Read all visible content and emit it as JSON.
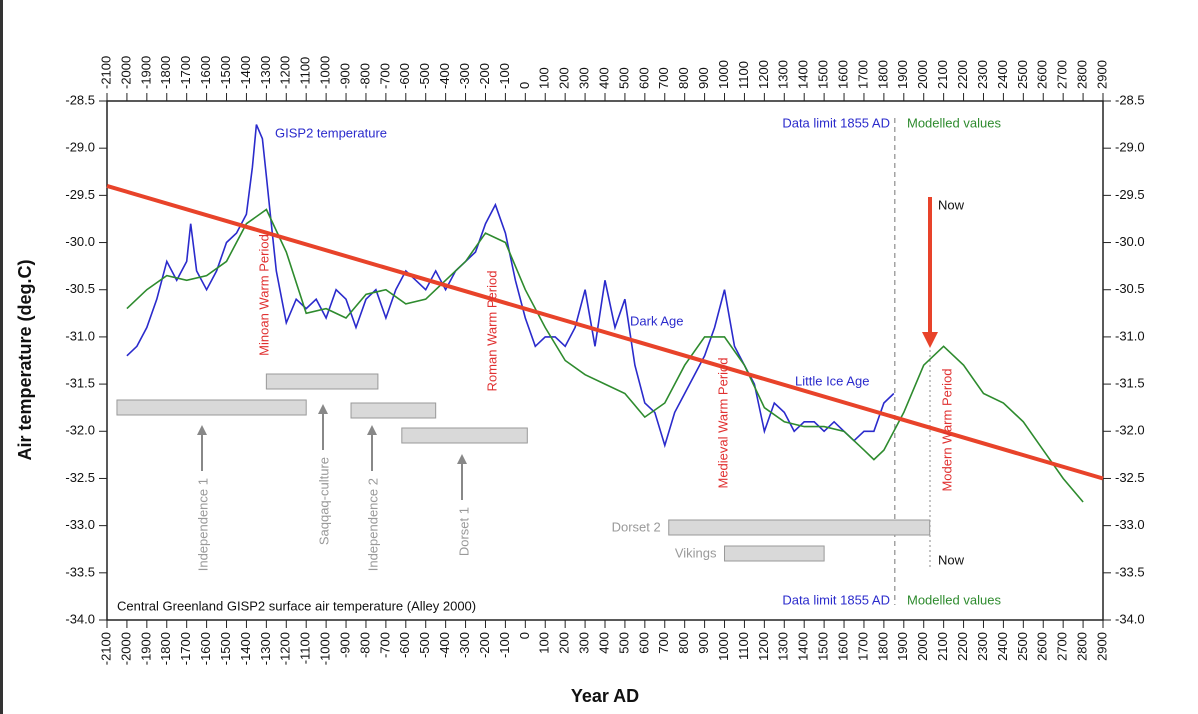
{
  "chart_data": {
    "type": "line",
    "title": "Central Greenland GISP2 surface air temperature (Alley 2000)",
    "xlabel": "Year AD",
    "ylabel": "Air temperature (deg.C)",
    "xlim": [
      -2100,
      2900
    ],
    "xticks": [
      -2100,
      -2000,
      -1900,
      -1800,
      -1700,
      -1600,
      -1500,
      -1400,
      -1300,
      -1200,
      -1100,
      -1000,
      -900,
      -800,
      -700,
      -600,
      -500,
      -400,
      -300,
      -200,
      -100,
      0,
      100,
      200,
      300,
      400,
      500,
      600,
      700,
      800,
      900,
      1000,
      1100,
      1200,
      1300,
      1400,
      1500,
      1600,
      1700,
      1800,
      1900,
      2000,
      2100,
      2200,
      2300,
      2400,
      2500,
      2600,
      2700,
      2800,
      2900
    ],
    "ylim": [
      -34,
      -28.5
    ],
    "yticks": [
      -28.5,
      {
        "value": -29,
        "label": "-29.0"
      },
      -29.5,
      {
        "value": -30,
        "label": "-30.0"
      },
      -30.5,
      {
        "value": -31,
        "label": "-31.0"
      },
      -31.5,
      {
        "value": -32,
        "label": "-32.0"
      },
      -32.5,
      {
        "value": -33,
        "label": "-33.0"
      },
      -33.5,
      {
        "value": -34,
        "label": "-34.0"
      }
    ],
    "series": [
      {
        "name": "GISP2 temperature",
        "color": "#2b2bcc",
        "x": [
          -2000,
          -1950,
          -1900,
          -1850,
          -1800,
          -1750,
          -1700,
          -1680,
          -1650,
          -1600,
          -1550,
          -1500,
          -1450,
          -1400,
          -1370,
          -1350,
          -1320,
          -1300,
          -1280,
          -1250,
          -1200,
          -1150,
          -1100,
          -1050,
          -1000,
          -950,
          -900,
          -850,
          -800,
          -750,
          -700,
          -650,
          -600,
          -550,
          -500,
          -450,
          -400,
          -350,
          -300,
          -250,
          -200,
          -150,
          -100,
          -50,
          0,
          50,
          100,
          150,
          200,
          250,
          300,
          350,
          400,
          450,
          500,
          550,
          600,
          650,
          700,
          750,
          800,
          850,
          900,
          950,
          1000,
          1050,
          1100,
          1150,
          1200,
          1250,
          1300,
          1350,
          1400,
          1450,
          1500,
          1550,
          1600,
          1650,
          1700,
          1750,
          1800,
          1850
        ],
        "values": [
          -31.2,
          -31.1,
          -30.9,
          -30.6,
          -30.2,
          -30.4,
          -30.2,
          -29.8,
          -30.3,
          -30.5,
          -30.3,
          -30.0,
          -29.9,
          -29.7,
          -29.2,
          -28.75,
          -28.9,
          -29.3,
          -29.7,
          -30.3,
          -30.85,
          -30.6,
          -30.7,
          -30.6,
          -30.8,
          -30.5,
          -30.6,
          -30.9,
          -30.6,
          -30.5,
          -30.8,
          -30.5,
          -30.3,
          -30.4,
          -30.5,
          -30.3,
          -30.5,
          -30.3,
          -30.2,
          -30.1,
          -29.8,
          -29.6,
          -29.9,
          -30.4,
          -30.8,
          -31.1,
          -31.0,
          -31.0,
          -31.1,
          -30.9,
          -30.5,
          -31.1,
          -30.4,
          -30.9,
          -30.6,
          -31.3,
          -31.7,
          -31.8,
          -32.15,
          -31.8,
          -31.6,
          -31.4,
          -31.2,
          -30.9,
          -30.5,
          -31.1,
          -31.3,
          -31.5,
          -32.0,
          -31.7,
          -31.8,
          -32.0,
          -31.9,
          -31.9,
          -32.0,
          -31.9,
          -32.0,
          -32.1,
          -32.0,
          -32.0,
          -31.7,
          -31.6
        ]
      },
      {
        "color": "#2e8b2e",
        "x": [
          -2000,
          -1900,
          -1800,
          -1700,
          -1600,
          -1500,
          -1400,
          -1300,
          -1200,
          -1100,
          -1000,
          -900,
          -800,
          -700,
          -600,
          -500,
          -400,
          -300,
          -200,
          -100,
          0,
          100,
          200,
          300,
          400,
          500,
          600,
          700,
          800,
          900,
          1000,
          1100,
          1200,
          1300,
          1400,
          1500,
          1600,
          1700,
          1750,
          1800,
          1900,
          2000,
          2100,
          2200,
          2300,
          2400,
          2500,
          2600,
          2700,
          2800
        ],
        "values": [
          -30.7,
          -30.5,
          -30.35,
          -30.4,
          -30.35,
          -30.2,
          -29.8,
          -29.65,
          -30.1,
          -30.75,
          -30.7,
          -30.8,
          -30.55,
          -30.5,
          -30.65,
          -30.6,
          -30.4,
          -30.2,
          -29.9,
          -30.0,
          -30.5,
          -30.9,
          -31.25,
          -31.4,
          -31.5,
          -31.6,
          -31.85,
          -31.7,
          -31.3,
          -31.0,
          -31.0,
          -31.3,
          -31.75,
          -31.9,
          -31.95,
          -31.95,
          -32.0,
          -32.2,
          -32.3,
          -32.2,
          -31.8,
          -31.3,
          -31.1,
          -31.3,
          -31.6,
          -31.7,
          -31.9,
          -32.2,
          -32.5,
          -32.75
        ]
      },
      {
        "color": "#e8432a",
        "x": [
          -2100,
          2900
        ],
        "values": [
          -29.4,
          -32.5
        ]
      }
    ],
    "annotations": [
      "Data limit 1855 AD",
      "Modelled values",
      "Now",
      "Dark Age",
      "Little Ice Age",
      "Minoan Warm Period",
      "Roman Warm Period",
      "Medieval Warm Period",
      "Modern Warm Period",
      "Data limit 1855 AD",
      "Modelled values",
      "Now"
    ],
    "data_limit": 1855,
    "periods": [
      {
        "label": "Saqqaq-culture",
        "start": -1300,
        "end": -740
      },
      {
        "label": "Independence 1",
        "start": -2050,
        "end": -1100
      },
      {
        "label": "Independence 2",
        "start": -875,
        "end": -450
      },
      {
        "label": "Dorset 1",
        "start": -620,
        "end": 10
      },
      {
        "label": "Dorset 2",
        "start": 720,
        "end": 2030
      },
      {
        "label": "Vikings",
        "start": 1000,
        "end": 1500
      }
    ]
  }
}
